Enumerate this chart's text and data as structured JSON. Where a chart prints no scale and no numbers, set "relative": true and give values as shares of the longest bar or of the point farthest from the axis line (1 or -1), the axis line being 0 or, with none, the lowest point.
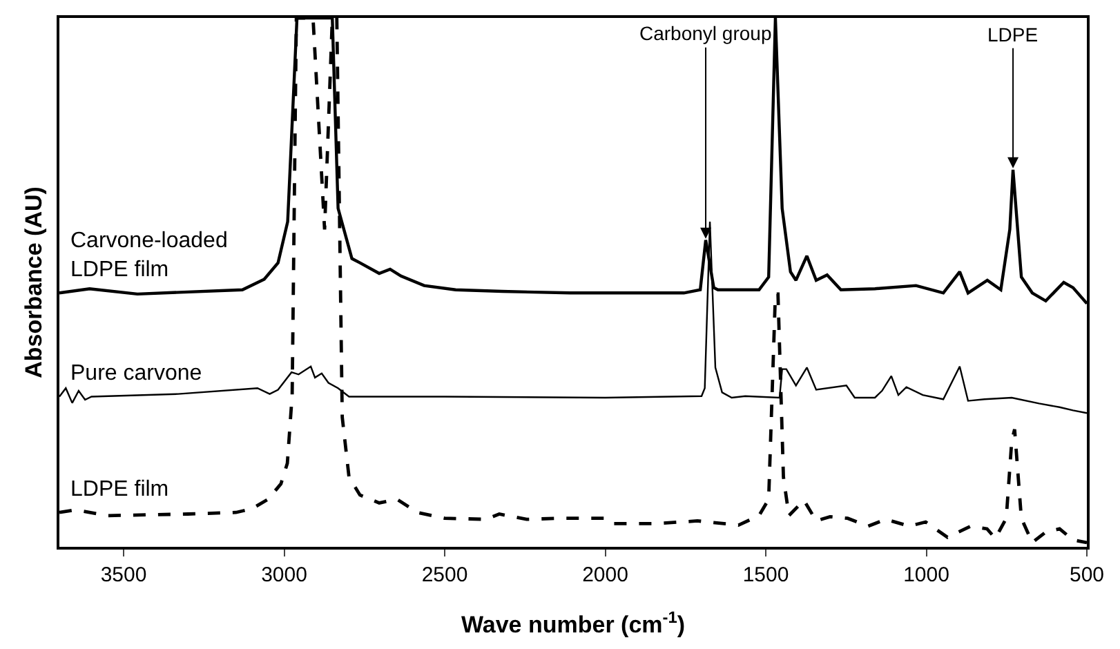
{
  "chart_data": {
    "type": "line",
    "relative": true,
    "xlabel": "Wave number (cm$^{-1}$)",
    "ylabel": "Absorbance (AU)",
    "xlim": [
      3700,
      500
    ],
    "xticks": [
      3500,
      3000,
      2500,
      2000,
      1500,
      1000,
      500
    ],
    "legend": false,
    "marker": "none",
    "annotations": [
      {
        "text": "Carbonyl group",
        "x": 1687,
        "y": 0.58
      },
      {
        "text": "LDPE",
        "x": 730,
        "y": 0.713
      }
    ],
    "series": [
      {
        "name": "Carvone-loaded\nLDPE film",
        "color": "#000000",
        "line_style": "solid",
        "x": [
          3700,
          3606,
          3457,
          3130,
          3062,
          3019,
          2989,
          2960,
          2900,
          2850,
          2832,
          2789,
          2764,
          2704,
          2670,
          2636,
          2564,
          2466,
          2321,
          2109,
          1781,
          1755,
          1704,
          1687,
          1662,
          1649,
          1521,
          1491,
          1470,
          1449,
          1423,
          1406,
          1372,
          1343,
          1309,
          1266,
          1160,
          1032,
          947,
          896,
          870,
          810,
          768,
          740,
          730,
          704,
          670,
          628,
          572,
          543,
          500
        ],
        "values": [
          0.48,
          0.488,
          0.478,
          0.486,
          0.506,
          0.537,
          0.615,
          1,
          1,
          1,
          0.64,
          0.545,
          0.537,
          0.517,
          0.525,
          0.512,
          0.494,
          0.486,
          0.483,
          0.48,
          0.48,
          0.48,
          0.486,
          0.58,
          0.49,
          0.486,
          0.486,
          0.51,
          1,
          0.64,
          0.52,
          0.504,
          0.55,
          0.504,
          0.514,
          0.486,
          0.488,
          0.494,
          0.48,
          0.52,
          0.48,
          0.504,
          0.486,
          0.6,
          0.713,
          0.51,
          0.48,
          0.465,
          0.5,
          0.49,
          0.46
        ]
      },
      {
        "name": "Pure carvone",
        "color": "#000000",
        "line_style": "solid",
        "x": [
          3700,
          3680,
          3660,
          3640,
          3620,
          3600,
          3330,
          3083,
          3045,
          3019,
          2977,
          2955,
          2917,
          2904,
          2883,
          2862,
          2832,
          2798,
          2500,
          2000,
          1700,
          1690,
          1674,
          1657,
          1636,
          1606,
          1564,
          1457,
          1449,
          1436,
          1406,
          1372,
          1343,
          1249,
          1223,
          1160,
          1138,
          1109,
          1087,
          1062,
          1011,
          947,
          896,
          870,
          819,
          734,
          649,
          585,
          543,
          500
        ],
        "values": [
          0.284,
          0.3,
          0.272,
          0.295,
          0.278,
          0.284,
          0.289,
          0.3,
          0.289,
          0.297,
          0.33,
          0.326,
          0.341,
          0.32,
          0.328,
          0.31,
          0.3,
          0.284,
          0.284,
          0.282,
          0.285,
          0.3,
          0.615,
          0.339,
          0.292,
          0.282,
          0.285,
          0.282,
          0.336,
          0.336,
          0.305,
          0.339,
          0.297,
          0.305,
          0.282,
          0.282,
          0.295,
          0.323,
          0.287,
          0.302,
          0.287,
          0.279,
          0.341,
          0.276,
          0.279,
          0.282,
          0.271,
          0.264,
          0.258,
          0.253
        ]
      },
      {
        "name": "LDPE film",
        "color": "#000000",
        "line_style": "dashed",
        "x": [
          3700,
          3650,
          3550,
          3300,
          3150,
          3100,
          3050,
          3010,
          2990,
          2975,
          2962,
          2910,
          2874,
          2850,
          2836,
          2819,
          2798,
          2764,
          2704,
          2649,
          2585,
          2500,
          2372,
          2330,
          2245,
          2138,
          2000,
          1981,
          1840,
          1713,
          1585,
          1521,
          1491,
          1470,
          1462,
          1445,
          1428,
          1381,
          1343,
          1300,
          1245,
          1181,
          1126,
          1053,
          1002,
          934,
          862,
          811,
          785,
          751,
          734,
          725,
          704,
          670,
          628,
          585,
          543,
          500
        ],
        "values": [
          0.065,
          0.07,
          0.059,
          0.062,
          0.065,
          0.072,
          0.09,
          0.119,
          0.158,
          0.287,
          1,
          1,
          0.6,
          1,
          1,
          0.245,
          0.132,
          0.098,
          0.083,
          0.09,
          0.065,
          0.054,
          0.052,
          0.062,
          0.052,
          0.054,
          0.054,
          0.044,
          0.044,
          0.049,
          0.041,
          0.059,
          0.09,
          0.478,
          0.478,
          0.132,
          0.059,
          0.088,
          0.049,
          0.057,
          0.054,
          0.039,
          0.052,
          0.039,
          0.047,
          0.018,
          0.039,
          0.034,
          0.016,
          0.054,
          0.2,
          0.222,
          0.054,
          0.008,
          0.028,
          0.034,
          0.013,
          0.008
        ]
      }
    ]
  }
}
